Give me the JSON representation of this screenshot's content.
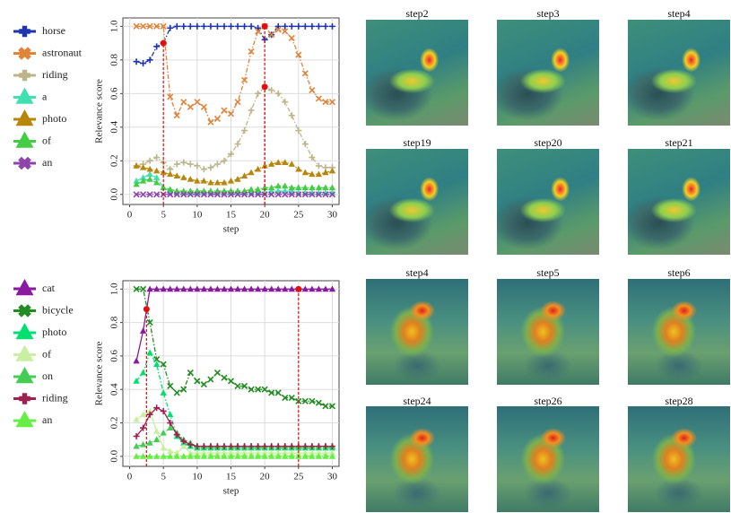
{
  "chart_data": [
    {
      "type": "line",
      "xlabel": "step",
      "ylabel": "Relevance score",
      "x": [
        1,
        2,
        3,
        4,
        5,
        6,
        7,
        8,
        9,
        10,
        11,
        12,
        13,
        14,
        15,
        16,
        17,
        18,
        19,
        20,
        21,
        22,
        23,
        24,
        25,
        26,
        27,
        28,
        29,
        30
      ],
      "xlim": [
        -1,
        31
      ],
      "xticks": [
        0,
        5,
        10,
        15,
        20,
        25,
        30
      ],
      "ylim": [
        -0.06,
        1.05
      ],
      "yticks": [
        {
          "value": 0,
          "label": "0.0"
        },
        0.2,
        0.4,
        0.6,
        0.8,
        {
          "value": 1,
          "label": "1.0"
        }
      ],
      "grid": true,
      "series": [
        {
          "name": "horse",
          "color": "#1f35b0",
          "marker": "plus",
          "linestyle": "dashed",
          "values": [
            0.79,
            0.78,
            0.8,
            0.88,
            0.9,
            0.99,
            1,
            1,
            1,
            1,
            1,
            1,
            1,
            1,
            1,
            1,
            1,
            1,
            0.99,
            0.92,
            0.95,
            1,
            1,
            1,
            1,
            1,
            1,
            1,
            1,
            1
          ]
        },
        {
          "name": "astronaut",
          "color": "#e0843a",
          "marker": "x",
          "linestyle": "dashed",
          "values": [
            1,
            1,
            1,
            1,
            1,
            0.58,
            0.47,
            0.55,
            0.52,
            0.55,
            0.52,
            0.43,
            0.45,
            0.5,
            0.48,
            0.55,
            0.68,
            0.85,
            0.97,
            1,
            0.95,
            0.98,
            0.97,
            0.93,
            0.83,
            0.72,
            0.62,
            0.57,
            0.55,
            0.55
          ]
        },
        {
          "name": "riding",
          "color": "#bdb58a",
          "marker": "plus",
          "linestyle": "dashed",
          "values": [
            0.17,
            0.18,
            0.2,
            0.22,
            0.19,
            0.15,
            0.18,
            0.19,
            0.18,
            0.17,
            0.15,
            0.16,
            0.18,
            0.2,
            0.24,
            0.3,
            0.38,
            0.5,
            0.6,
            0.64,
            0.62,
            0.6,
            0.55,
            0.47,
            0.38,
            0.3,
            0.22,
            0.17,
            0.16,
            0.16
          ]
        },
        {
          "name": "a",
          "color": "#40e0b0",
          "marker": "triangle",
          "linestyle": "dashed",
          "values": [
            0.08,
            0.1,
            0.12,
            0.1,
            0.04,
            0.02,
            0.01,
            0.01,
            0.01,
            0.01,
            0.01,
            0.01,
            0.01,
            0.01,
            0.01,
            0.01,
            0.01,
            0.01,
            0.01,
            0.01,
            0.02,
            0.02,
            0.02,
            0.02,
            0.01,
            0.01,
            0.01,
            0.01,
            0.01,
            0.01
          ]
        },
        {
          "name": "photo",
          "color": "#b8860b",
          "marker": "triangle",
          "linestyle": "dashed",
          "values": [
            0.17,
            0.16,
            0.15,
            0.14,
            0.13,
            0.12,
            0.11,
            0.1,
            0.09,
            0.08,
            0.08,
            0.07,
            0.07,
            0.07,
            0.08,
            0.09,
            0.11,
            0.13,
            0.15,
            0.17,
            0.18,
            0.19,
            0.19,
            0.18,
            0.15,
            0.13,
            0.12,
            0.12,
            0.13,
            0.14
          ]
        },
        {
          "name": "of",
          "color": "#44cc44",
          "marker": "triangle",
          "linestyle": "dashed",
          "values": [
            0.06,
            0.08,
            0.09,
            0.07,
            0.04,
            0.03,
            0.02,
            0.02,
            0.02,
            0.02,
            0.02,
            0.02,
            0.02,
            0.02,
            0.02,
            0.02,
            0.02,
            0.03,
            0.03,
            0.04,
            0.04,
            0.05,
            0.05,
            0.04,
            0.04,
            0.04,
            0.04,
            0.04,
            0.04,
            0.04
          ]
        },
        {
          "name": "an",
          "color": "#8e44ad",
          "marker": "x",
          "linestyle": "dashed",
          "values": [
            0,
            0,
            0,
            0,
            0,
            0,
            0,
            0,
            0,
            0,
            0,
            0,
            0,
            0,
            0,
            0,
            0,
            0,
            0,
            0,
            0,
            0,
            0,
            0,
            0,
            0,
            0,
            0,
            0,
            0
          ]
        }
      ],
      "highlights": {
        "color": "#e01010",
        "x": [
          5,
          20,
          20
        ],
        "y": [
          0.9,
          1,
          0.64
        ]
      }
    },
    {
      "type": "line",
      "xlabel": "step",
      "ylabel": "Relevance score",
      "x": [
        1,
        2,
        3,
        4,
        5,
        6,
        7,
        8,
        9,
        10,
        11,
        12,
        13,
        14,
        15,
        16,
        17,
        18,
        19,
        20,
        21,
        22,
        23,
        24,
        25,
        26,
        27,
        28,
        29,
        30
      ],
      "xlim": [
        -1,
        31
      ],
      "xticks": [
        0,
        5,
        10,
        15,
        20,
        25,
        30
      ],
      "ylim": [
        -0.06,
        1.05
      ],
      "yticks": [
        {
          "value": 0,
          "label": "0.0"
        },
        0.2,
        0.4,
        0.6,
        0.8,
        {
          "value": 1,
          "label": "1.0"
        }
      ],
      "grid": true,
      "series": [
        {
          "name": "cat",
          "color": "#8a1aa0",
          "marker": "triangle",
          "linestyle": "solid",
          "values": [
            0.57,
            0.75,
            1,
            1,
            1,
            1,
            1,
            1,
            1,
            1,
            1,
            1,
            1,
            1,
            1,
            1,
            1,
            1,
            1,
            1,
            1,
            1,
            1,
            1,
            1,
            1,
            1,
            1,
            1,
            1
          ]
        },
        {
          "name": "bicycle",
          "color": "#228b22",
          "marker": "x",
          "linestyle": "dashed",
          "values": [
            1,
            1,
            0.8,
            0.58,
            0.55,
            0.42,
            0.38,
            0.4,
            0.5,
            0.45,
            0.43,
            0.46,
            0.5,
            0.47,
            0.45,
            0.42,
            0.42,
            0.4,
            0.4,
            0.4,
            0.38,
            0.38,
            0.35,
            0.35,
            0.33,
            0.33,
            0.33,
            0.32,
            0.3,
            0.3
          ]
        },
        {
          "name": "photo",
          "color": "#00e070",
          "marker": "triangle",
          "linestyle": "dashed",
          "values": [
            0.45,
            0.5,
            0.62,
            0.55,
            0.38,
            0.25,
            0.12,
            0.08,
            0.06,
            0.05,
            0.05,
            0.05,
            0.05,
            0.05,
            0.05,
            0.05,
            0.05,
            0.05,
            0.05,
            0.05,
            0.05,
            0.05,
            0.05,
            0.05,
            0.05,
            0.05,
            0.05,
            0.05,
            0.05,
            0.05
          ]
        },
        {
          "name": "of",
          "color": "#c8f0a0",
          "marker": "triangle",
          "linestyle": "solid",
          "values": [
            0.22,
            0.25,
            0.27,
            0.15,
            0.05,
            0.03,
            0.02,
            0.06,
            0.02,
            0.02,
            0.02,
            0.02,
            0.02,
            0.02,
            0.02,
            0.02,
            0.02,
            0.02,
            0.02,
            0.02,
            0.02,
            0.02,
            0.02,
            0.02,
            0.02,
            0.02,
            0.02,
            0.02,
            0.02,
            0.02
          ]
        },
        {
          "name": "on",
          "color": "#44cc55",
          "marker": "triangle",
          "linestyle": "dashed",
          "values": [
            0.06,
            0.07,
            0.08,
            0.1,
            0.14,
            0.17,
            0.14,
            0.1,
            0.08,
            0.06,
            0.06,
            0.06,
            0.06,
            0.06,
            0.06,
            0.06,
            0.06,
            0.06,
            0.06,
            0.06,
            0.06,
            0.06,
            0.06,
            0.06,
            0.06,
            0.06,
            0.06,
            0.06,
            0.06,
            0.06
          ]
        },
        {
          "name": "riding",
          "color": "#a02050",
          "marker": "plus",
          "linestyle": "solid",
          "values": [
            0.12,
            0.17,
            0.25,
            0.29,
            0.27,
            0.2,
            0.13,
            0.09,
            0.07,
            0.06,
            0.06,
            0.06,
            0.06,
            0.06,
            0.06,
            0.06,
            0.06,
            0.06,
            0.06,
            0.06,
            0.06,
            0.06,
            0.06,
            0.06,
            0.06,
            0.06,
            0.06,
            0.06,
            0.06,
            0.06
          ]
        },
        {
          "name": "an",
          "color": "#66ee44",
          "marker": "triangle",
          "linestyle": "dashed",
          "values": [
            0,
            0,
            0,
            0,
            0,
            0,
            0,
            0,
            0,
            0,
            0,
            0,
            0,
            0,
            0,
            0,
            0,
            0,
            0,
            0,
            0,
            0,
            0,
            0,
            0,
            0,
            0,
            0,
            0,
            0
          ]
        }
      ],
      "highlights": {
        "color": "#e01010",
        "x": [
          2.5,
          25
        ],
        "y": [
          0.88,
          1
        ]
      }
    }
  ],
  "image_grids": [
    {
      "labels": [
        "step2",
        "step3",
        "step4",
        "step19",
        "step20",
        "step21"
      ]
    },
    {
      "labels": [
        "step4",
        "step5",
        "step6",
        "step24",
        "step26",
        "step28"
      ]
    }
  ]
}
